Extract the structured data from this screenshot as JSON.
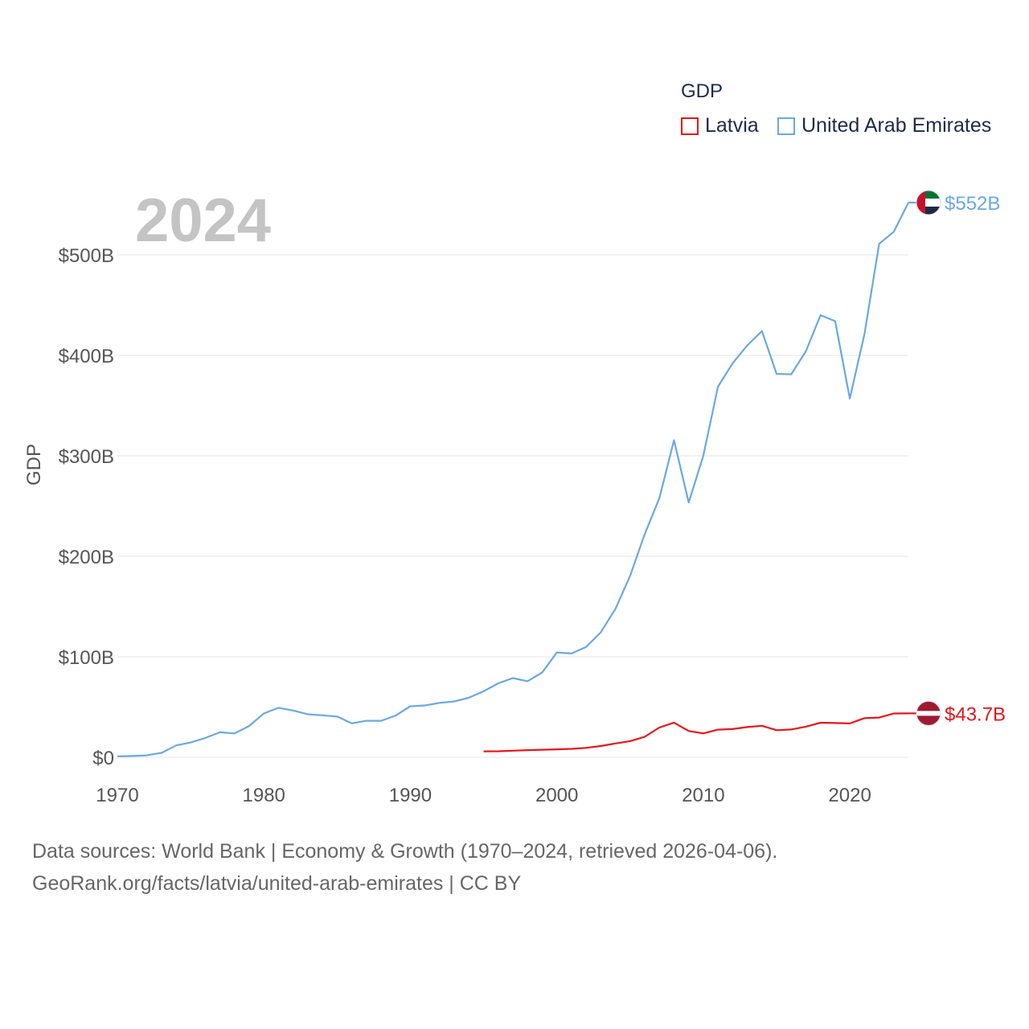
{
  "chart_data": {
    "type": "line",
    "year_label": "2024",
    "ylabel": "GDP",
    "xlim": [
      1970,
      2024
    ],
    "ylim": [
      0,
      500
    ],
    "y_unit": "billion USD",
    "x_ticks": [
      {
        "value": 1970,
        "label": "1970"
      },
      {
        "value": 1980,
        "label": "1980"
      },
      {
        "value": 1990,
        "label": "1990"
      },
      {
        "value": 2000,
        "label": "2000"
      },
      {
        "value": 2010,
        "label": "2010"
      },
      {
        "value": 2020,
        "label": "2020"
      }
    ],
    "y_ticks": [
      {
        "value": 0,
        "label": "$0"
      },
      {
        "value": 100,
        "label": "$100B"
      },
      {
        "value": 200,
        "label": "$200B"
      },
      {
        "value": 300,
        "label": "$300B"
      },
      {
        "value": 400,
        "label": "$400B"
      },
      {
        "value": 500,
        "label": "$500B"
      }
    ],
    "legend": {
      "title": "GDP",
      "entries": [
        "Latvia",
        "United Arab Emirates"
      ]
    },
    "series": [
      {
        "name": "Latvia",
        "color": "#e8151b",
        "end_label": "$43.7B",
        "flag": "latvia",
        "x": [
          1995,
          1996,
          1997,
          1998,
          1999,
          2000,
          2001,
          2002,
          2003,
          2004,
          2005,
          2006,
          2007,
          2008,
          2009,
          2010,
          2011,
          2012,
          2013,
          2014,
          2015,
          2016,
          2017,
          2018,
          2019,
          2020,
          2021,
          2022,
          2023,
          2024
        ],
        "values": [
          5.9,
          6.0,
          6.6,
          7.1,
          7.5,
          7.9,
          8.4,
          9.4,
          11.2,
          13.8,
          16.1,
          20.4,
          29.6,
          34.5,
          26.2,
          23.8,
          27.5,
          28.1,
          30.1,
          31.4,
          27.0,
          27.7,
          30.5,
          34.4,
          34.1,
          33.7,
          39.0,
          39.5,
          43.6,
          43.7
        ]
      },
      {
        "name": "United Arab Emirates",
        "color": "#6aa8e4",
        "end_label": "$552B",
        "flag": "uae",
        "x": [
          1970,
          1971,
          1972,
          1973,
          1974,
          1975,
          1976,
          1977,
          1978,
          1979,
          1980,
          1981,
          1982,
          1983,
          1984,
          1985,
          1986,
          1987,
          1988,
          1989,
          1990,
          1991,
          1992,
          1993,
          1994,
          1995,
          1996,
          1997,
          1998,
          1999,
          2000,
          2001,
          2002,
          2003,
          2004,
          2005,
          2006,
          2007,
          2008,
          2009,
          2010,
          2011,
          2012,
          2013,
          2014,
          2015,
          2016,
          2017,
          2018,
          2019,
          2020,
          2021,
          2022,
          2023,
          2024
        ],
        "values": [
          1.0,
          1.3,
          1.9,
          4.3,
          11.8,
          14.7,
          19.2,
          24.9,
          23.8,
          31.2,
          43.6,
          49.3,
          46.6,
          42.8,
          41.8,
          40.6,
          33.8,
          36.3,
          36.3,
          41.5,
          50.7,
          51.6,
          54.2,
          55.6,
          59.3,
          65.7,
          73.6,
          78.8,
          75.7,
          84.4,
          104.3,
          103.3,
          109.8,
          124.3,
          147.8,
          180.6,
          222.1,
          257.9,
          315.5,
          253.5,
          300.2,
          368.8,
          392.1,
          409.9,
          424.2,
          381.6,
          381.1,
          404.0,
          440.0,
          434.0,
          357.0,
          421.0,
          511.0,
          523.0,
          552.0
        ]
      }
    ],
    "sources_line1": "Data sources: World Bank | Economy & Growth (1970–2024, retrieved 2026-04-06).",
    "sources_line2": "GeoRank.org/facts/latvia/united-arab-emirates | CC BY"
  }
}
